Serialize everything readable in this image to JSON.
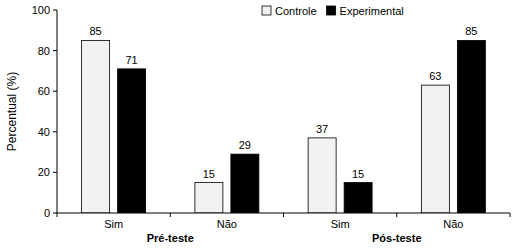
{
  "chart_data": {
    "type": "bar",
    "y_label": "Percentual (%)",
    "categories": [
      "Sim",
      "Não",
      "Sim",
      "Não"
    ],
    "category_groups": [
      "Pré-teste",
      "Pós-teste"
    ],
    "series": [
      {
        "name": "Controle",
        "color": "#f2f2f2",
        "values": [
          85,
          15,
          37,
          63
        ]
      },
      {
        "name": "Experimental",
        "color": "#000000",
        "values": [
          71,
          29,
          15,
          85
        ]
      }
    ],
    "ylim": [
      0,
      100
    ],
    "yticks": [
      0,
      20,
      40,
      60,
      80,
      100
    ],
    "grid": false,
    "legend": "top",
    "data_labels": true
  }
}
